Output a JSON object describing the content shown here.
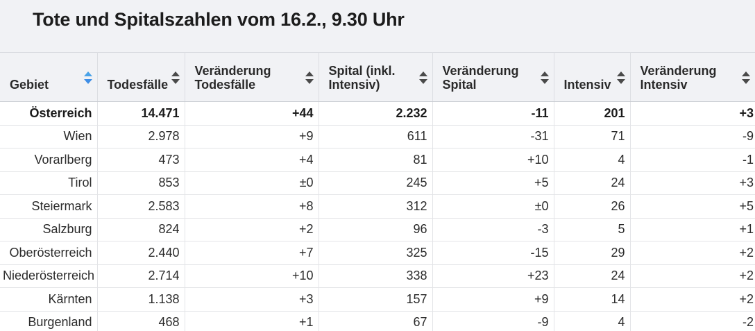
{
  "title": "Tote und Spitalszahlen vom 16.2., 9.30 Uhr",
  "headers": [
    {
      "line1": "Gebiet",
      "line2": "",
      "active": true
    },
    {
      "line1": "Todesfälle",
      "line2": "",
      "active": false
    },
    {
      "line1": "Veränderung",
      "line2": "Todesfälle",
      "active": false
    },
    {
      "line1": "Spital (inkl.",
      "line2": "Intensiv)",
      "active": false
    },
    {
      "line1": "Veränderung",
      "line2": "Spital",
      "active": false
    },
    {
      "line1": "Intensiv",
      "line2": "",
      "active": false
    },
    {
      "line1": "Veränderung",
      "line2": "Intensiv",
      "active": false
    }
  ],
  "rows": [
    {
      "gebiet": "Österreich",
      "todesfaelle": "14.471",
      "veraenderung_todesfaelle": "+44",
      "spital": "2.232",
      "veraenderung_spital": "-11",
      "intensiv": "201",
      "veraenderung_intensiv": "+3"
    },
    {
      "gebiet": "Wien",
      "todesfaelle": "2.978",
      "veraenderung_todesfaelle": "+9",
      "spital": "611",
      "veraenderung_spital": "-31",
      "intensiv": "71",
      "veraenderung_intensiv": "-9"
    },
    {
      "gebiet": "Vorarlberg",
      "todesfaelle": "473",
      "veraenderung_todesfaelle": "+4",
      "spital": "81",
      "veraenderung_spital": "+10",
      "intensiv": "4",
      "veraenderung_intensiv": "-1"
    },
    {
      "gebiet": "Tirol",
      "todesfaelle": "853",
      "veraenderung_todesfaelle": "±0",
      "spital": "245",
      "veraenderung_spital": "+5",
      "intensiv": "24",
      "veraenderung_intensiv": "+3"
    },
    {
      "gebiet": "Steiermark",
      "todesfaelle": "2.583",
      "veraenderung_todesfaelle": "+8",
      "spital": "312",
      "veraenderung_spital": "±0",
      "intensiv": "26",
      "veraenderung_intensiv": "+5"
    },
    {
      "gebiet": "Salzburg",
      "todesfaelle": "824",
      "veraenderung_todesfaelle": "+2",
      "spital": "96",
      "veraenderung_spital": "-3",
      "intensiv": "5",
      "veraenderung_intensiv": "+1"
    },
    {
      "gebiet": "Oberösterreich",
      "todesfaelle": "2.440",
      "veraenderung_todesfaelle": "+7",
      "spital": "325",
      "veraenderung_spital": "-15",
      "intensiv": "29",
      "veraenderung_intensiv": "+2"
    },
    {
      "gebiet": "Niederösterreich",
      "todesfaelle": "2.714",
      "veraenderung_todesfaelle": "+10",
      "spital": "338",
      "veraenderung_spital": "+23",
      "intensiv": "24",
      "veraenderung_intensiv": "+2"
    },
    {
      "gebiet": "Kärnten",
      "todesfaelle": "1.138",
      "veraenderung_todesfaelle": "+3",
      "spital": "157",
      "veraenderung_spital": "+9",
      "intensiv": "14",
      "veraenderung_intensiv": "+2"
    },
    {
      "gebiet": "Burgenland",
      "todesfaelle": "468",
      "veraenderung_todesfaelle": "+1",
      "spital": "67",
      "veraenderung_spital": "-9",
      "intensiv": "4",
      "veraenderung_intensiv": "-2"
    }
  ],
  "colors": {
    "sort_active": "#3e8ee6",
    "sort_inactive": "#4a4a4a",
    "header_bg": "#f1f2f5"
  },
  "icons": {
    "sort": "sort-arrows-icon"
  }
}
